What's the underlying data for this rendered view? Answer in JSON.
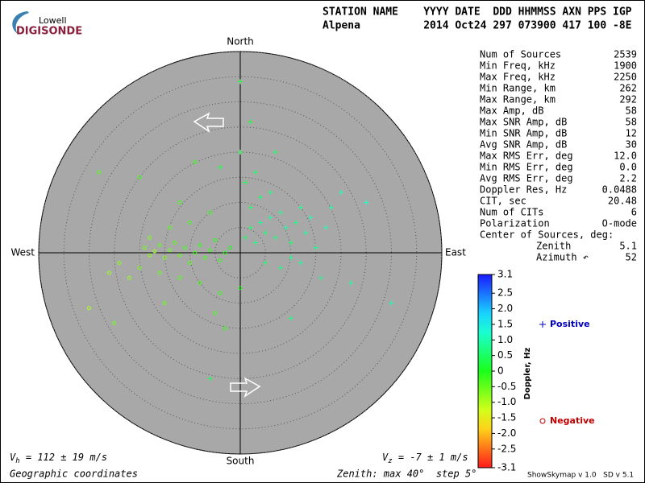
{
  "logo": {
    "top": "Lowell",
    "bottom": "DIGISONDE"
  },
  "header": {
    "line1": "STATION NAME    YYYY DATE  DDD HHMMSS AXN PPS IGP",
    "line2": "Alpena          2014 Oct24 297 073900 417 100 -8E"
  },
  "stats": {
    "rows": [
      {
        "label": "Num of Sources",
        "value": "2539"
      },
      {
        "label": "Min Freq, kHz",
        "value": "1900"
      },
      {
        "label": "Max Freq, kHz",
        "value": "2250"
      },
      {
        "label": "Min Range, km",
        "value": "262"
      },
      {
        "label": "Max Range, km",
        "value": "292"
      },
      {
        "label": "Max Amp, dB",
        "value": "58"
      },
      {
        "label": "Max SNR Amp, dB",
        "value": "58"
      },
      {
        "label": "Min SNR Amp, dB",
        "value": "12"
      },
      {
        "label": "Avg SNR Amp, dB",
        "value": "30"
      },
      {
        "label": "Max RMS Err, deg",
        "value": "12.0"
      },
      {
        "label": "Min RMS Err, deg",
        "value": "0.0"
      },
      {
        "label": "Avg RMS Err, deg",
        "value": "2.2"
      },
      {
        "label": "Doppler Res, Hz",
        "value": "0.0488"
      },
      {
        "label": "CIT, sec",
        "value": "20.48"
      },
      {
        "label": "Num of CITs",
        "value": "6"
      },
      {
        "label": "Polarization",
        "value": "O-mode"
      }
    ],
    "center": {
      "label": "Center of Sources, deg:",
      "rows": [
        {
          "label": "Zenith",
          "value": "5.1"
        },
        {
          "label": "Azimuth ↶",
          "value": "52"
        }
      ]
    }
  },
  "footer": {
    "vh": {
      "symbol": "V",
      "subscript": "h",
      "text": " = 112 ± 19 m/s"
    },
    "vz": {
      "symbol": "V",
      "subscript": "z",
      "text": " = -7 ± 1 m/s"
    },
    "coords": "Geographic coordinates",
    "zenith": "Zenith: max 40°  step 5°",
    "version": "ShowSkymap v 1.0   SD v 5.1"
  },
  "chart_data": {
    "type": "skymap",
    "directions": {
      "north": "North",
      "south": "South",
      "east": "East",
      "west": "West"
    },
    "rlim": [
      0,
      40
    ],
    "rticks": [
      5,
      10,
      15,
      20,
      25,
      30,
      35,
      40
    ],
    "colorbar": {
      "label": "Doppler, Hz",
      "lim": [
        -3.1,
        3.1
      ],
      "ticks": [
        3.1,
        2.5,
        {
          "value": 2,
          "label": "2.0"
        },
        1.5,
        {
          "value": 1,
          "label": "1.0"
        },
        0.5,
        0,
        -0.5,
        {
          "value": -1,
          "label": "-1.0"
        },
        -1.5,
        {
          "value": -2,
          "label": "-2.0"
        },
        -2.5,
        -3.1
      ]
    },
    "series": [
      {
        "name": "Positive",
        "color": "#0000c0",
        "marker": "plus",
        "points": [
          [
            1,
            3,
            0.5
          ],
          [
            2,
            5,
            0.6
          ],
          [
            3,
            2,
            0.7
          ],
          [
            4,
            6,
            0.8
          ],
          [
            5,
            4,
            0.6
          ],
          [
            6,
            7,
            0.9
          ],
          [
            7,
            3,
            0.7
          ],
          [
            8,
            8,
            0.8
          ],
          [
            9,
            5,
            0.9
          ],
          [
            10,
            2,
            0.6
          ],
          [
            11,
            6,
            0.7
          ],
          [
            12,
            9,
            0.8
          ],
          [
            13,
            4,
            0.9
          ],
          [
            14,
            7,
            1.0
          ],
          [
            2,
            9,
            0.5
          ],
          [
            4,
            11,
            0.6
          ],
          [
            6,
            12,
            0.7
          ],
          [
            1,
            14,
            0.4
          ],
          [
            3,
            16,
            0.5
          ],
          [
            5,
            -2,
            0.6
          ],
          [
            8,
            -3,
            0.7
          ],
          [
            10,
            -1,
            0.8
          ],
          [
            12,
            -2,
            0.9
          ],
          [
            15,
            1,
            0.8
          ],
          [
            17,
            5,
            1.0
          ],
          [
            18,
            9,
            0.9
          ],
          [
            20,
            12,
            1.1
          ],
          [
            16,
            -5,
            0.8
          ],
          [
            0,
            20,
            0.3
          ],
          [
            -4,
            17,
            0.3
          ],
          [
            2,
            26,
            0.2
          ],
          [
            22,
            -6,
            0.9
          ],
          [
            25,
            10,
            1.2
          ],
          [
            10,
            -13,
            0.7
          ],
          [
            -6,
            -25,
            0.4
          ],
          [
            7,
            20,
            0.5
          ],
          [
            30,
            -10,
            1.0
          ],
          [
            0,
            34,
            0.2
          ]
        ]
      },
      {
        "name": "Negative",
        "color": "#c00000",
        "marker": "circle",
        "points": [
          [
            -19,
            1,
            -0.6
          ],
          [
            -18,
            -0.5,
            -0.8
          ],
          [
            -17,
            0.3,
            -0.9
          ],
          [
            -16,
            1.5,
            -0.5
          ],
          [
            -15,
            -1,
            -0.7
          ],
          [
            -14,
            0.5,
            -0.6
          ],
          [
            -13,
            2,
            -0.4
          ],
          [
            -12,
            -0.5,
            -0.5
          ],
          [
            -11,
            1,
            -0.3
          ],
          [
            -10,
            -2,
            -0.4
          ],
          [
            -9,
            0,
            -0.3
          ],
          [
            -8,
            1.5,
            -0.2
          ],
          [
            -7,
            -1,
            -0.3
          ],
          [
            -6,
            0.5,
            -0.2
          ],
          [
            -5,
            2.5,
            -0.1
          ],
          [
            -4,
            -1.5,
            -0.2
          ],
          [
            -3,
            0,
            -0.1
          ],
          [
            -2,
            1,
            0
          ],
          [
            -20,
            -3,
            -0.6
          ],
          [
            -18,
            3,
            -0.7
          ],
          [
            -16,
            -4,
            -0.5
          ],
          [
            -14,
            5,
            -0.4
          ],
          [
            -12,
            -5,
            -0.4
          ],
          [
            -10,
            6,
            -0.3
          ],
          [
            -8,
            -6,
            -0.3
          ],
          [
            -6,
            8,
            -0.2
          ],
          [
            -4,
            -8,
            -0.2
          ],
          [
            -22,
            -5,
            -0.8
          ],
          [
            -24,
            -2,
            -0.7
          ],
          [
            -26,
            -4,
            -0.9
          ],
          [
            -30,
            -11,
            -1.0
          ],
          [
            -25,
            -14,
            -0.6
          ],
          [
            -20,
            15,
            -0.3
          ],
          [
            -9,
            18,
            -0.2
          ],
          [
            -5,
            -12,
            -0.3
          ],
          [
            -3,
            -15,
            -0.2
          ],
          [
            -15,
            -10,
            -0.5
          ],
          [
            -28,
            16,
            -0.4
          ],
          [
            -12,
            10,
            -0.3
          ],
          [
            0,
            -7,
            -0.1
          ]
        ]
      }
    ]
  }
}
